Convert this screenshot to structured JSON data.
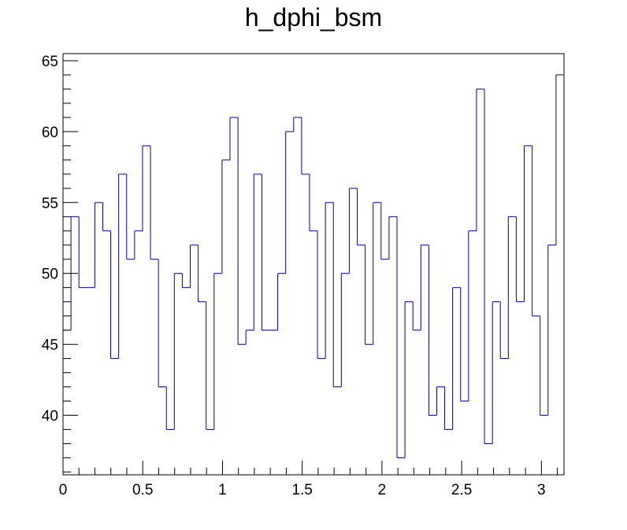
{
  "title": "h_dphi_bsm",
  "chart_data": {
    "type": "histogram",
    "title": "h_dphi_bsm",
    "xlabel": "",
    "ylabel": "",
    "xlim": [
      0,
      3.1416
    ],
    "ylim": [
      35.8,
      65.5
    ],
    "grid": false,
    "line_color": "#000099",
    "x_ticks": [
      {
        "value": 0,
        "label": "0"
      },
      {
        "value": 0.5,
        "label": "0.5"
      },
      {
        "value": 1,
        "label": "1"
      },
      {
        "value": 1.5,
        "label": "1.5"
      },
      {
        "value": 2,
        "label": "2"
      },
      {
        "value": 2.5,
        "label": "2.5"
      },
      {
        "value": 3,
        "label": "3"
      }
    ],
    "y_ticks": [
      {
        "value": 40,
        "label": "40"
      },
      {
        "value": 45,
        "label": "45"
      },
      {
        "value": 50,
        "label": "50"
      },
      {
        "value": 55,
        "label": "55"
      },
      {
        "value": 60,
        "label": "60"
      },
      {
        "value": 65,
        "label": "65"
      }
    ],
    "bins": 63,
    "values": [
      46,
      54,
      49,
      49,
      55,
      53,
      44,
      57,
      51,
      53,
      59,
      51,
      42,
      39,
      50,
      49,
      52,
      48,
      39,
      50,
      58,
      61,
      45,
      46,
      57,
      46,
      46,
      50,
      60,
      61,
      57,
      53,
      44,
      55,
      42,
      50,
      56,
      52,
      45,
      55,
      51,
      54,
      37,
      48,
      46,
      52,
      40,
      42,
      39,
      49,
      41,
      53,
      63,
      38,
      48,
      44,
      54,
      48,
      59,
      47,
      40,
      52,
      64
    ]
  }
}
